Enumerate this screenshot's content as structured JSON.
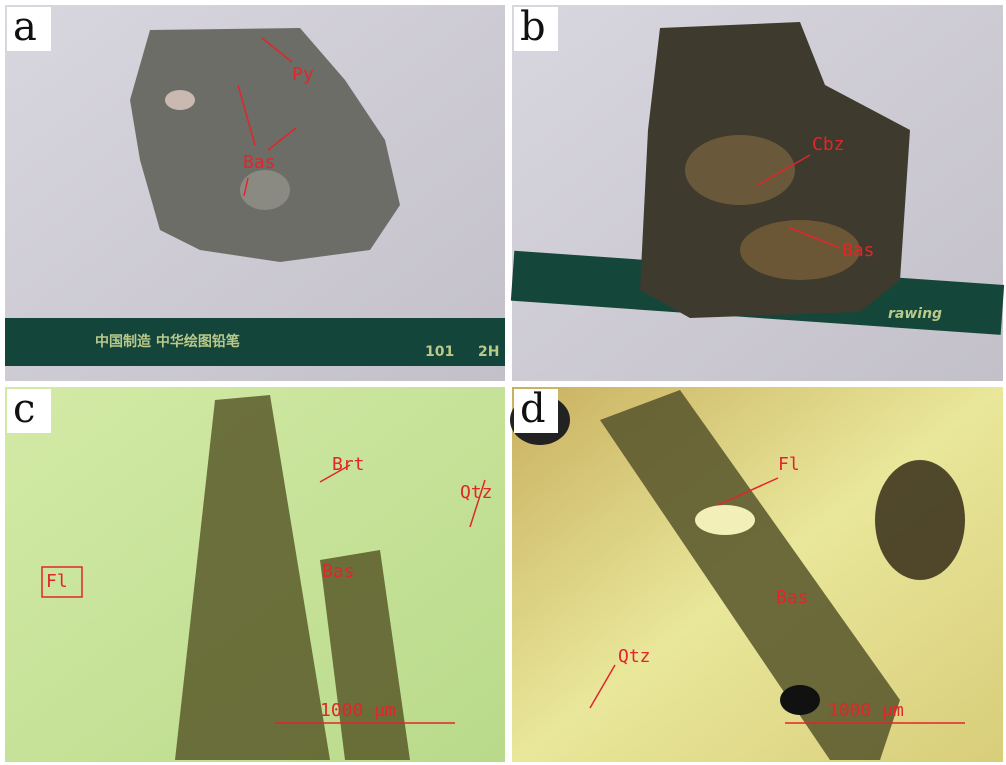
{
  "panels": [
    {
      "letter": "a",
      "labels": [
        "Py",
        "Bas"
      ],
      "pencil": [
        "中国制造 中华绘图铅笔",
        "101",
        "2H"
      ]
    },
    {
      "letter": "b",
      "labels": [
        "Cbz",
        "Bas"
      ],
      "pencil": [
        "rawing"
      ]
    },
    {
      "letter": "c",
      "labels": [
        "Brt",
        "Qtz",
        "Fl",
        "Bas"
      ],
      "scale": "1000 μm"
    },
    {
      "letter": "d",
      "labels": [
        "Fl",
        "Bas",
        "Qtz"
      ],
      "scale": "1000 μm"
    }
  ]
}
